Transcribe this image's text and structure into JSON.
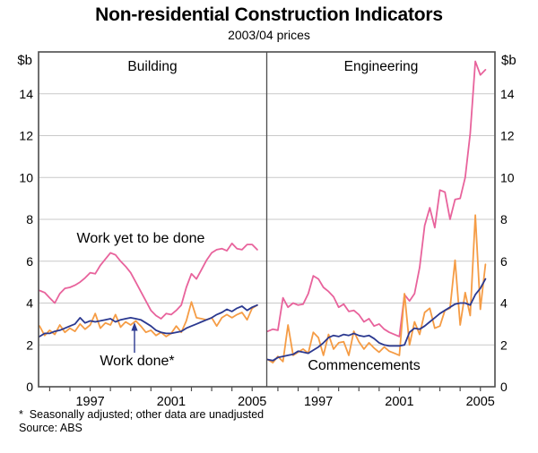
{
  "title": "Non-residential Construction Indicators",
  "subtitle": "2003/04 prices",
  "footnote": "*  Seasonally adjusted; other data are unadjusted",
  "source": "Source: ABS",
  "chart_data": {
    "type": "line",
    "unit_label": "$b",
    "ylim": [
      0,
      16
    ],
    "yticks": [
      0,
      2,
      4,
      6,
      8,
      10,
      12,
      14
    ],
    "xlim": [
      1994.45,
      2005.72
    ],
    "year_ticks": [
      1995,
      1996,
      1997,
      1998,
      1999,
      2000,
      2001,
      2002,
      2003,
      2004,
      2005
    ],
    "year_labels": [
      "1997",
      "2001",
      "2005"
    ],
    "grid": true,
    "legend_position": "inline-annotations",
    "colors": {
      "pink": "#E8639C",
      "orange": "#F59C45",
      "blue": "#2B3990",
      "grid": "#C9C9C9",
      "frame": "#4D4D4D"
    },
    "x": [
      1994.5,
      1994.75,
      1995.0,
      1995.25,
      1995.5,
      1995.75,
      1996.0,
      1996.25,
      1996.5,
      1996.75,
      1997.0,
      1997.25,
      1997.5,
      1997.75,
      1998.0,
      1998.25,
      1998.5,
      1998.75,
      1999.0,
      1999.25,
      1999.5,
      1999.75,
      2000.0,
      2000.25,
      2000.5,
      2000.75,
      2001.0,
      2001.25,
      2001.5,
      2001.75,
      2002.0,
      2002.25,
      2002.5,
      2002.75,
      2003.0,
      2003.25,
      2003.5,
      2003.75,
      2004.0,
      2004.25,
      2004.5,
      2004.75,
      2005.0,
      2005.25
    ],
    "panels": [
      {
        "title": "Building",
        "series": [
          {
            "name": "Work yet to be done",
            "color_key": "pink",
            "values": [
              4.6,
              4.5,
              4.25,
              4.0,
              4.45,
              4.7,
              4.75,
              4.85,
              5.0,
              5.2,
              5.45,
              5.4,
              5.8,
              6.1,
              6.4,
              6.3,
              6.0,
              5.75,
              5.45,
              5.0,
              4.55,
              4.1,
              3.65,
              3.4,
              3.25,
              3.5,
              3.45,
              3.65,
              3.9,
              4.75,
              5.4,
              5.15,
              5.6,
              6.05,
              6.4,
              6.55,
              6.6,
              6.5,
              6.85,
              6.6,
              6.55,
              6.8,
              6.8,
              6.55
            ]
          },
          {
            "name": "Commencements",
            "color_key": "orange",
            "values": [
              2.9,
              2.45,
              2.7,
              2.5,
              2.95,
              2.6,
              2.8,
              2.65,
              3.0,
              2.75,
              2.95,
              3.5,
              2.8,
              3.05,
              2.95,
              3.45,
              2.85,
              3.1,
              2.95,
              3.15,
              2.9,
              2.6,
              2.7,
              2.45,
              2.6,
              2.4,
              2.55,
              2.9,
              2.6,
              3.15,
              4.05,
              3.3,
              3.25,
              3.2,
              3.3,
              2.9,
              3.3,
              3.45,
              3.3,
              3.45,
              3.55,
              3.2,
              3.75,
              3.9
            ]
          },
          {
            "name": "Work done*",
            "color_key": "blue",
            "values": [
              2.4,
              2.55,
              2.55,
              2.65,
              2.7,
              2.8,
              2.9,
              3.0,
              3.3,
              3.05,
              3.15,
              3.1,
              3.15,
              3.2,
              3.25,
              3.1,
              3.2,
              3.25,
              3.3,
              3.25,
              3.2,
              3.05,
              2.9,
              2.7,
              2.6,
              2.55,
              2.55,
              2.6,
              2.65,
              2.8,
              2.9,
              3.0,
              3.1,
              3.2,
              3.3,
              3.45,
              3.55,
              3.7,
              3.6,
              3.75,
              3.85,
              3.65,
              3.8,
              3.9
            ]
          }
        ]
      },
      {
        "title": "Engineering",
        "series": [
          {
            "name": "Work yet to be done",
            "color_key": "pink",
            "values": [
              2.65,
              2.75,
              2.7,
              4.25,
              3.8,
              4.0,
              3.9,
              3.95,
              4.45,
              5.3,
              5.15,
              4.75,
              4.55,
              4.3,
              3.8,
              3.95,
              3.6,
              3.65,
              3.45,
              3.1,
              3.25,
              2.9,
              3.0,
              2.75,
              2.6,
              2.5,
              2.4,
              4.4,
              4.1,
              4.45,
              5.7,
              7.7,
              8.55,
              7.6,
              9.4,
              9.3,
              8.0,
              8.95,
              9.0,
              10.0,
              12.1,
              15.55,
              14.9,
              15.15
            ]
          },
          {
            "name": "Commencements",
            "color_key": "orange",
            "values": [
              1.3,
              1.15,
              1.45,
              1.2,
              2.95,
              1.5,
              1.65,
              1.8,
              1.6,
              2.6,
              2.35,
              1.5,
              2.5,
              1.8,
              2.1,
              2.15,
              1.5,
              2.65,
              2.15,
              1.8,
              2.1,
              1.85,
              1.65,
              1.9,
              1.7,
              1.6,
              1.5,
              4.45,
              2.0,
              3.1,
              2.5,
              3.55,
              3.75,
              2.8,
              2.9,
              3.65,
              3.75,
              6.05,
              2.95,
              4.5,
              3.4,
              8.2,
              3.7,
              5.85
            ]
          },
          {
            "name": "Work done*",
            "color_key": "blue",
            "values": [
              1.3,
              1.25,
              1.4,
              1.45,
              1.5,
              1.55,
              1.7,
              1.65,
              1.6,
              1.75,
              1.9,
              2.1,
              2.35,
              2.45,
              2.4,
              2.5,
              2.45,
              2.55,
              2.45,
              2.4,
              2.45,
              2.3,
              2.1,
              2.0,
              1.95,
              1.95,
              1.95,
              2.0,
              2.6,
              2.8,
              2.75,
              2.9,
              3.1,
              3.3,
              3.5,
              3.65,
              3.8,
              3.95,
              4.0,
              4.0,
              3.9,
              4.4,
              4.7,
              5.15
            ]
          }
        ]
      }
    ]
  }
}
